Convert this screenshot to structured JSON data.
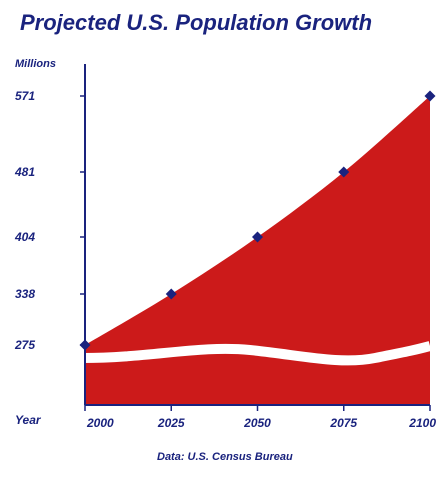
{
  "chart_data": {
    "type": "area",
    "title": "Projected U.S. Population Growth",
    "unit_label": "Millions",
    "x_axis_label": "Year",
    "source": "Data: U.S. Census Bureau",
    "x": [
      2000,
      2025,
      2050,
      2075,
      2100
    ],
    "values": [
      275,
      338,
      404,
      481,
      571
    ],
    "y_ticks": [
      275,
      338,
      404,
      481,
      571
    ],
    "axis_break": true,
    "colors": {
      "area": "#cc1a1a",
      "axis": "#1a237e",
      "markers": "#1a237e",
      "text": "#1a237e"
    }
  }
}
